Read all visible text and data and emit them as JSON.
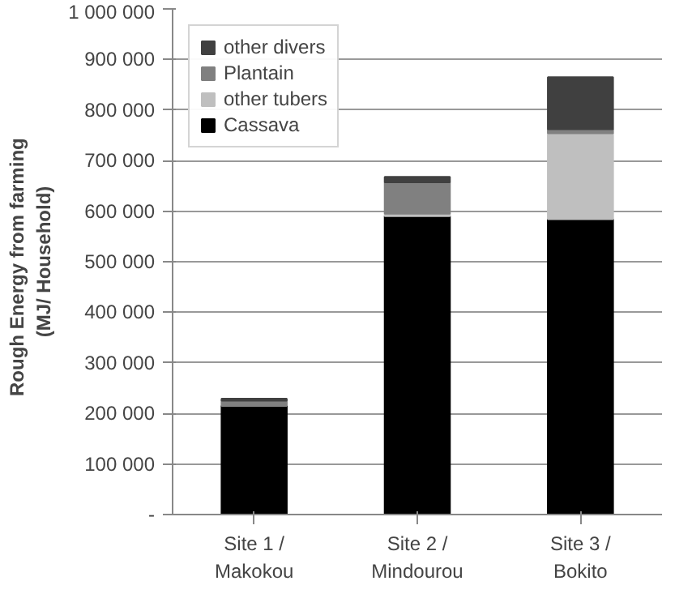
{
  "chart_data": {
    "type": "bar",
    "stacked": true,
    "ylabel": "Rough Energy  from  farming\n(MJ/ Household)",
    "categories": [
      "Site 1 /\nMakokou",
      "Site 2 /\nMindourou",
      "Site 3 /\nBokito"
    ],
    "series": [
      {
        "name": "Cassava",
        "color": "#000000",
        "values": [
          215000,
          590000,
          584000
        ]
      },
      {
        "name": "other tubers",
        "color": "#bfbfbf",
        "values": [
          0,
          5000,
          170000
        ]
      },
      {
        "name": "Plantain",
        "color": "#808080",
        "values": [
          10000,
          62000,
          8000
        ]
      },
      {
        "name": "other divers",
        "color": "#404040",
        "values": [
          4000,
          11000,
          103000
        ]
      }
    ],
    "ylim": [
      0,
      1000000
    ],
    "yticks": [
      {
        "value": 0,
        "label": "-"
      },
      {
        "value": 100000,
        "label": "100 000"
      },
      {
        "value": 200000,
        "label": "200 000"
      },
      {
        "value": 300000,
        "label": "300 000"
      },
      {
        "value": 400000,
        "label": "400 000"
      },
      {
        "value": 500000,
        "label": "500 000"
      },
      {
        "value": 600000,
        "label": "600 000"
      },
      {
        "value": 700000,
        "label": "700 000"
      },
      {
        "value": 800000,
        "label": "800 000"
      },
      {
        "value": 900000,
        "label": "900 000"
      },
      {
        "value": 1000000,
        "label": "1 000 000"
      }
    ],
    "grid": "y",
    "legend": "top left"
  }
}
